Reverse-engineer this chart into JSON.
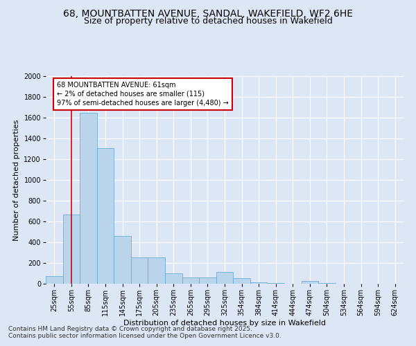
{
  "title_line1": "68, MOUNTBATTEN AVENUE, SANDAL, WAKEFIELD, WF2 6HE",
  "title_line2": "Size of property relative to detached houses in Wakefield",
  "xlabel": "Distribution of detached houses by size in Wakefield",
  "ylabel": "Number of detached properties",
  "categories": [
    "25sqm",
    "55sqm",
    "85sqm",
    "115sqm",
    "145sqm",
    "175sqm",
    "205sqm",
    "235sqm",
    "265sqm",
    "295sqm",
    "325sqm",
    "354sqm",
    "384sqm",
    "414sqm",
    "444sqm",
    "474sqm",
    "504sqm",
    "534sqm",
    "564sqm",
    "594sqm",
    "624sqm"
  ],
  "values": [
    75,
    665,
    1650,
    1310,
    460,
    255,
    255,
    100,
    60,
    60,
    115,
    55,
    15,
    5,
    0,
    30,
    5,
    0,
    0,
    0,
    0
  ],
  "bar_color": "#bad4eb",
  "bar_edge_color": "#6aaed6",
  "annotation_text_line1": "68 MOUNTBATTEN AVENUE: 61sqm",
  "annotation_text_line2": "← 2% of detached houses are smaller (115)",
  "annotation_text_line3": "97% of semi-detached houses are larger (4,480) →",
  "annotation_box_color": "#ffffff",
  "annotation_box_edge_color": "#cc0000",
  "vline_color": "#cc0000",
  "vline_x_bar_index": 1,
  "ylim": [
    0,
    2000
  ],
  "yticks": [
    0,
    200,
    400,
    600,
    800,
    1000,
    1200,
    1400,
    1600,
    1800,
    2000
  ],
  "background_color": "#dce6f5",
  "plot_bg_color": "#dce6f5",
  "footer_line1": "Contains HM Land Registry data © Crown copyright and database right 2025.",
  "footer_line2": "Contains public sector information licensed under the Open Government Licence v3.0.",
  "title_fontsize": 10,
  "subtitle_fontsize": 9,
  "axis_label_fontsize": 8,
  "tick_fontsize": 7,
  "annotation_fontsize": 7,
  "footer_fontsize": 6.5
}
